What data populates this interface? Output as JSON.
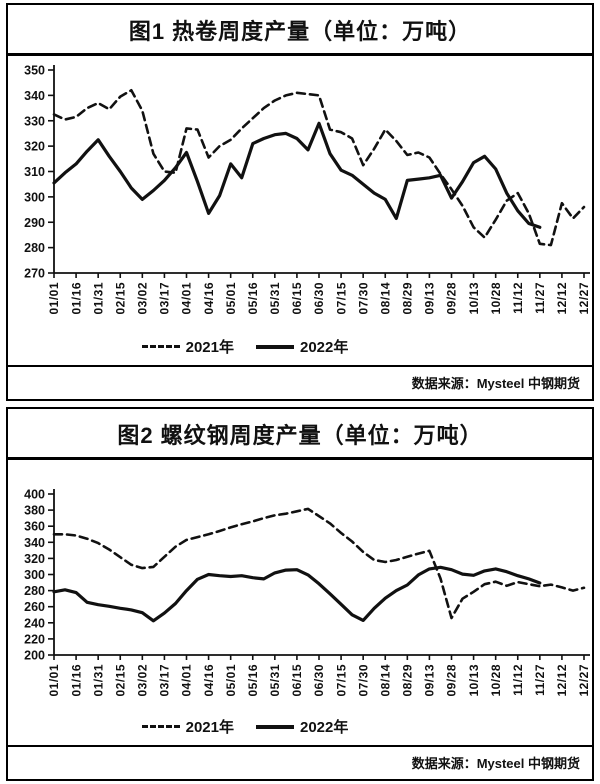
{
  "colors": {
    "ink": "#111111",
    "background": "#ffffff"
  },
  "chart_data": [
    {
      "type": "line",
      "title": "图1 热卷周度产量（单位：万吨）",
      "source": "数据来源：Mysteel 中钢期货",
      "xlabel": "",
      "ylabel": "",
      "grid": false,
      "legend_position": "bottom",
      "ylim": [
        270,
        350
      ],
      "ytick_step": 10,
      "x_count": 49,
      "x_labels": [
        "01/01",
        "01/16",
        "01/31",
        "02/15",
        "03/02",
        "03/17",
        "04/01",
        "04/16",
        "05/01",
        "05/16",
        "05/31",
        "06/15",
        "06/30",
        "07/15",
        "07/30",
        "08/14",
        "08/29",
        "09/13",
        "09/28",
        "10/13",
        "10/28",
        "11/12",
        "11/27",
        "12/12",
        "12/27"
      ],
      "series": [
        {
          "name": "2021年",
          "style": "dashed",
          "values": [
            332.5,
            330.5,
            331.5,
            335,
            337,
            334.5,
            339.5,
            342,
            334,
            317,
            310,
            309.5,
            327,
            326.5,
            315.5,
            320,
            322.5,
            327,
            331,
            335,
            338,
            340,
            341,
            340.5,
            340,
            326.5,
            325.5,
            323,
            312.5,
            319,
            326.5,
            322,
            316.5,
            317.5,
            315.5,
            309,
            303,
            296.5,
            288,
            284,
            291,
            298.5,
            301.5,
            293.5,
            281.5,
            281,
            297.5,
            291.5,
            296
          ]
        },
        {
          "name": "2022年",
          "style": "solid",
          "values": [
            305.5,
            309.5,
            313,
            318,
            322.5,
            316,
            310,
            303.5,
            299,
            302.5,
            306.5,
            311.5,
            317.5,
            306,
            293.5,
            300.5,
            313,
            307.5,
            321,
            323,
            324.5,
            325,
            323,
            318.5,
            329,
            317,
            310.5,
            308.5,
            305,
            301.5,
            299,
            291.5,
            306.5,
            307,
            307.5,
            308.5,
            299.5,
            306,
            313.5,
            316,
            311,
            301.5,
            294.5,
            289.5,
            288
          ]
        }
      ]
    },
    {
      "type": "line",
      "title": "图2 螺纹钢周度产量（单位：万吨）",
      "source": "数据来源：Mysteel 中钢期货",
      "xlabel": "",
      "ylabel": "",
      "grid": false,
      "legend_position": "bottom",
      "ylim": [
        200,
        400
      ],
      "ytick_step": 20,
      "x_count": 49,
      "x_labels": [
        "01/01",
        "01/16",
        "01/31",
        "02/15",
        "03/02",
        "03/17",
        "04/01",
        "04/16",
        "05/01",
        "05/16",
        "05/31",
        "06/15",
        "06/30",
        "07/15",
        "07/30",
        "08/14",
        "08/29",
        "09/13",
        "09/28",
        "10/13",
        "10/28",
        "11/12",
        "11/27",
        "12/12",
        "12/27"
      ],
      "series": [
        {
          "name": "2021年",
          "style": "dashed",
          "values": [
            350,
            350,
            348.5,
            344.5,
            339,
            331,
            321.5,
            312,
            308,
            309.5,
            322,
            334.5,
            343,
            346.5,
            350,
            354,
            358.5,
            362.5,
            366,
            370,
            373.5,
            375.5,
            378.5,
            381.5,
            372.5,
            363.5,
            351.5,
            341,
            328,
            318,
            315.5,
            318,
            322,
            326,
            329.5,
            295,
            246,
            270,
            278.5,
            288,
            291,
            286,
            290.5,
            288,
            285.5,
            287.5,
            284,
            280,
            283.5
          ]
        },
        {
          "name": "2022年",
          "style": "solid",
          "values": [
            278.5,
            281,
            277.5,
            265.5,
            262.5,
            260.5,
            258,
            256,
            252.5,
            242.5,
            252,
            264,
            280,
            294,
            300,
            298.5,
            297.5,
            298.5,
            296,
            294.5,
            302,
            305.5,
            306,
            299.5,
            288.5,
            276,
            263,
            250,
            243,
            258,
            270.5,
            280,
            287,
            299.5,
            307,
            309,
            306,
            300.5,
            299,
            304.5,
            307,
            303.5,
            298.5,
            294.5,
            289.5
          ]
        }
      ]
    }
  ]
}
